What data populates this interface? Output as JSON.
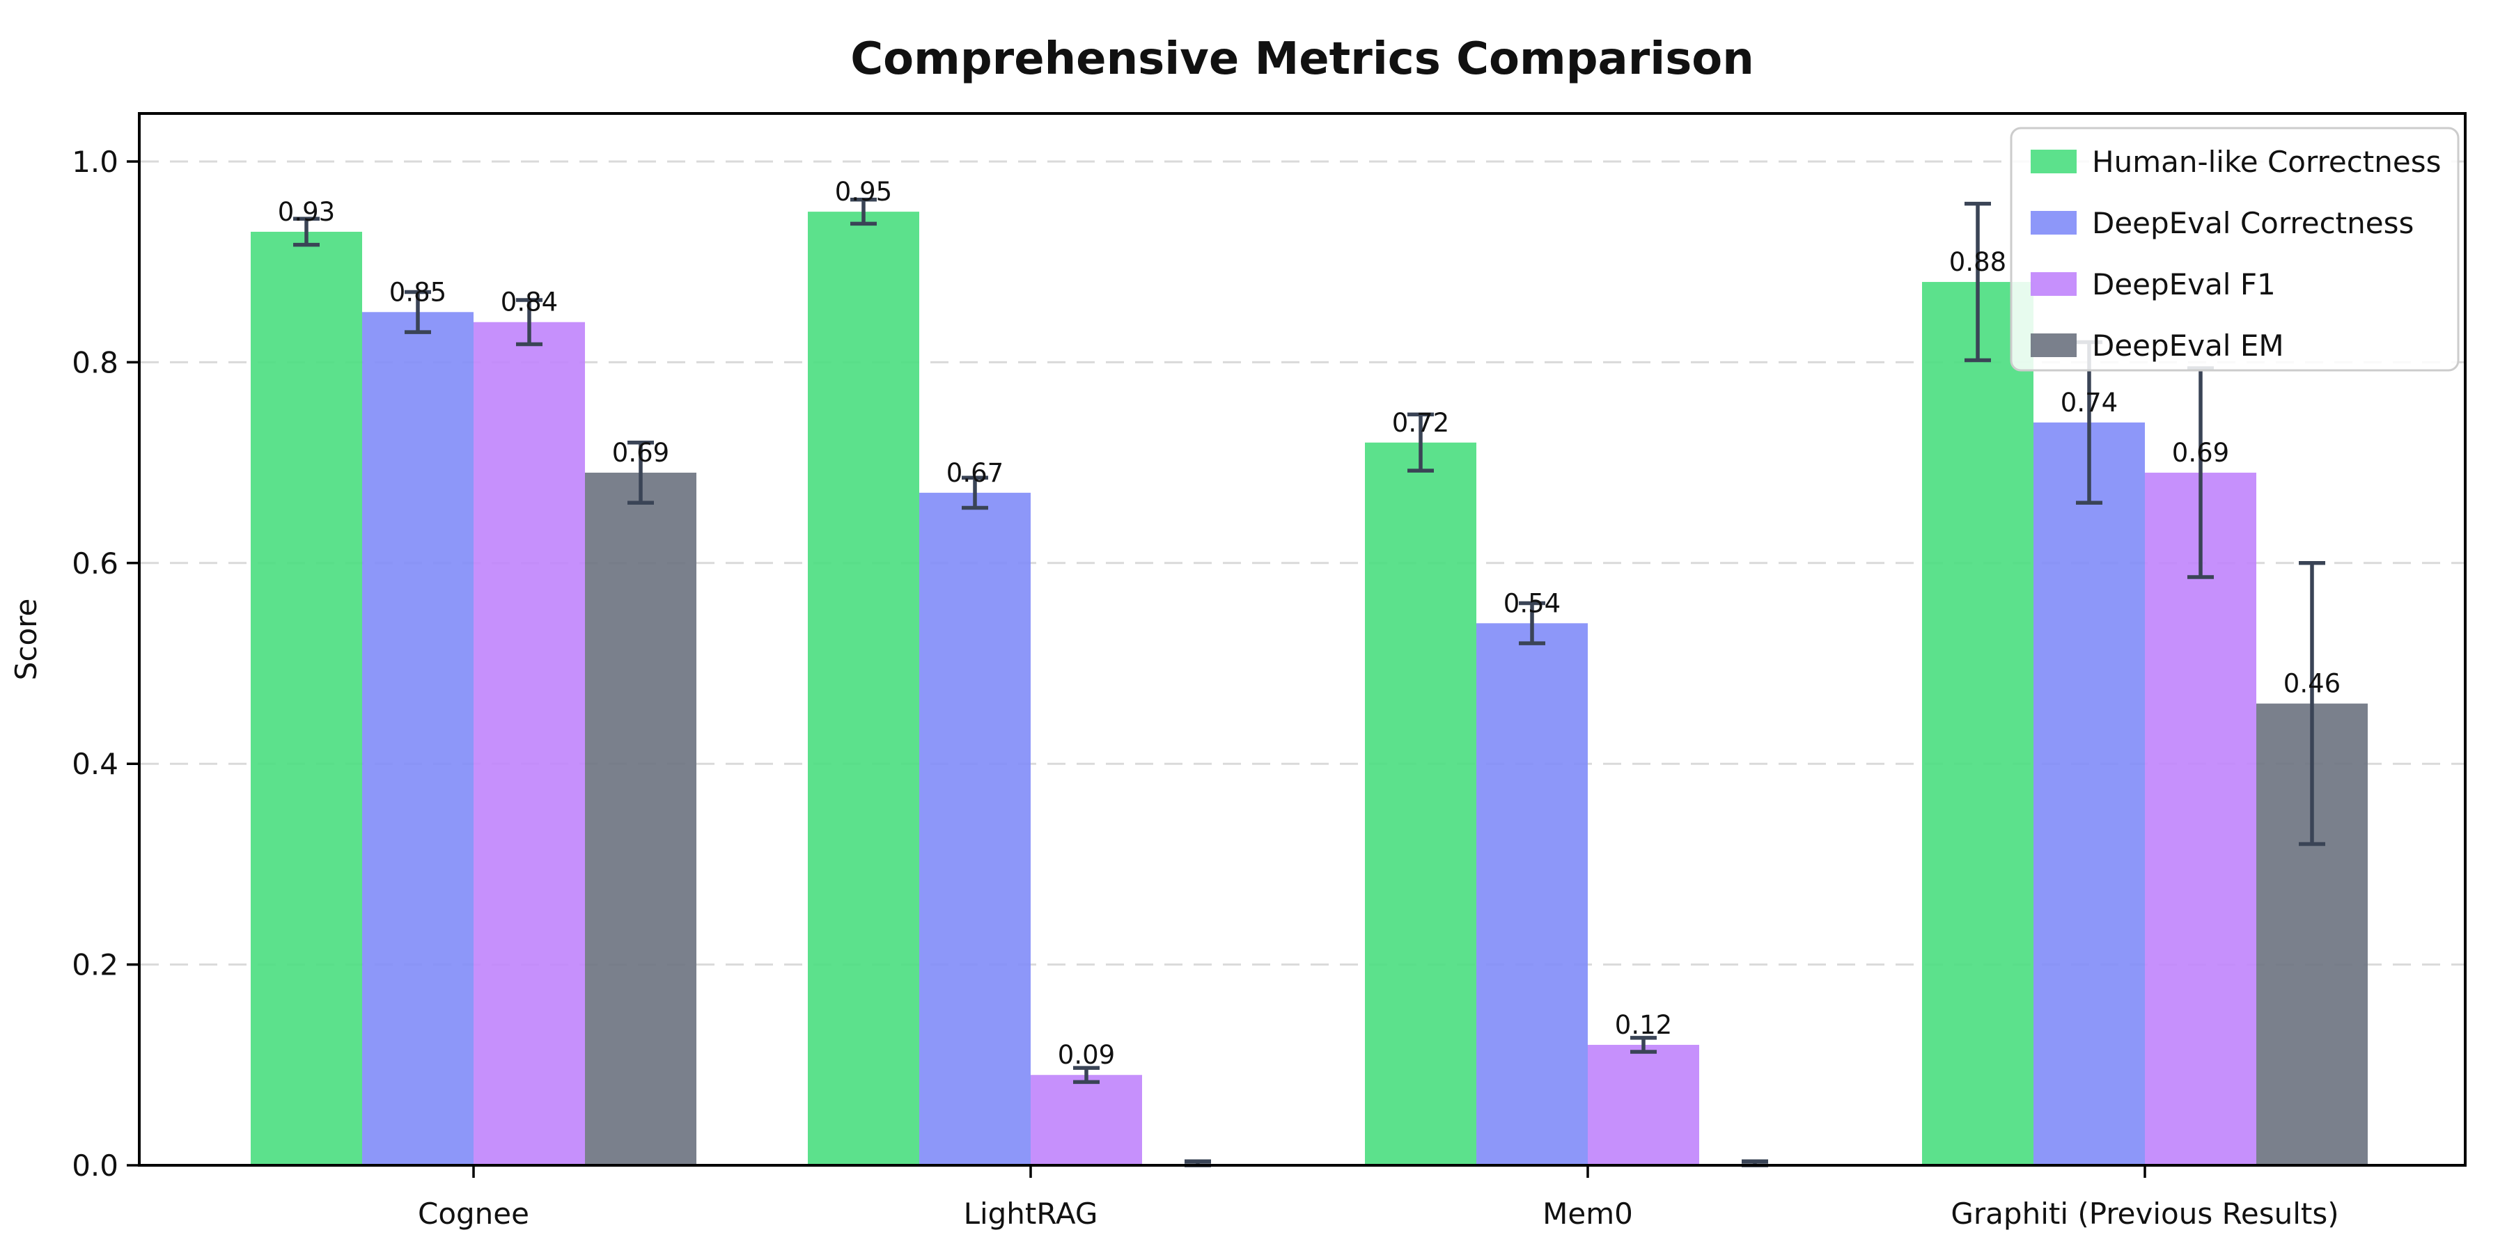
{
  "title": "Comprehensive Metrics Comparison",
  "chart_data": {
    "type": "bar",
    "title": "Comprehensive Metrics Comparison",
    "xlabel": "",
    "ylabel": "Score",
    "categories": [
      "Cognee",
      "LightRAG",
      "Mem0",
      "Graphiti (Previous Results)"
    ],
    "series": [
      {
        "name": "Human-like Correctness",
        "color": "#4ade80",
        "values": [
          0.93,
          0.95,
          0.72,
          0.88
        ],
        "errors": [
          0.013,
          0.012,
          0.028,
          0.078
        ],
        "labels": [
          "0.93",
          "0.95",
          "0.72",
          "0.88"
        ]
      },
      {
        "name": "DeepEval Correctness",
        "color": "#818cf8",
        "values": [
          0.85,
          0.67,
          0.54,
          0.74
        ],
        "errors": [
          0.02,
          0.015,
          0.02,
          0.08
        ],
        "labels": [
          "0.85",
          "0.67",
          "0.54",
          "0.74"
        ]
      },
      {
        "name": "DeepEval F1",
        "color": "#c084fc",
        "values": [
          0.84,
          0.09,
          0.12,
          0.69
        ],
        "errors": [
          0.022,
          0.007,
          0.007,
          0.104
        ],
        "labels": [
          "0.84",
          "0.09",
          "0.12",
          "0.69"
        ]
      },
      {
        "name": "DeepEval EM",
        "color": "#6b7280",
        "values": [
          0.69,
          0.0,
          0.0,
          0.46
        ],
        "errors": [
          0.03,
          0.004,
          0.004,
          0.14
        ],
        "labels": [
          "0.69",
          "",
          "",
          "0.46"
        ]
      }
    ],
    "y_ticks": [
      "0.0",
      "0.2",
      "0.4",
      "0.6",
      "0.8",
      "1.0"
    ],
    "y_tick_values": [
      0.0,
      0.2,
      0.4,
      0.6,
      0.8,
      1.0
    ],
    "ylim": [
      0,
      1.048
    ],
    "grid": "horizontal dashed",
    "legend_position": "upper right",
    "colors": {
      "errorbar": "#3a4456",
      "grid": "#dadada",
      "spine": "#000000",
      "text": "#111111",
      "legend_border": "#cccccc",
      "legend_bg": "rgba(255,255,255,0.85)"
    }
  }
}
